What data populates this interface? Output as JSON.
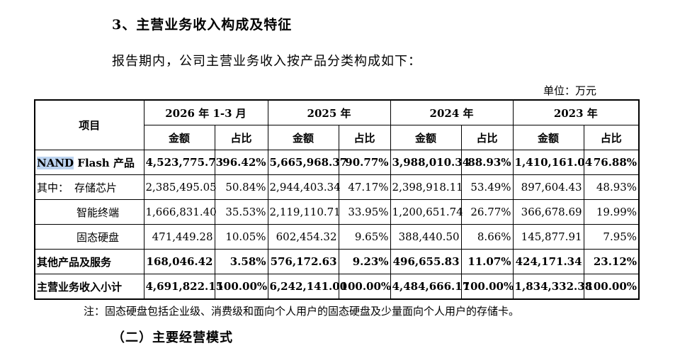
{
  "section_title": "3、主营业务收入构成及特征",
  "intro": "报告期内，公司主营业务收入按产品分类构成如下：",
  "unit": "单位：万元",
  "table": {
    "item_header": "项目",
    "periods": [
      "2026 年 1-3 月",
      "2025 年",
      "2024 年",
      "2023 年"
    ],
    "amount_label": "金额",
    "ratio_label": "占比",
    "rows": [
      {
        "label_hl": "NAND",
        "label_rest": " Flash 产品",
        "cells": [
          "4,523,775.73",
          "96.42%",
          "5,665,968.37",
          "90.77%",
          "3,988,010.34",
          "88.93%",
          "1,410,161.04",
          "76.88%"
        ]
      },
      {
        "label_prefix": "其中：",
        "label": "存储芯片",
        "cells": [
          "2,385,495.05",
          "50.84%",
          "2,944,403.34",
          "47.17%",
          "2,398,918.11",
          "53.49%",
          "897,604.43",
          "48.93%"
        ]
      },
      {
        "label": "智能终端",
        "cells": [
          "1,666,831.40",
          "35.53%",
          "2,119,110.71",
          "33.95%",
          "1,200,651.74",
          "26.77%",
          "366,678.69",
          "19.99%"
        ]
      },
      {
        "label": "固态硬盘",
        "cells": [
          "471,449.28",
          "10.05%",
          "602,454.32",
          "9.65%",
          "388,440.50",
          "8.66%",
          "145,877.91",
          "7.95%"
        ]
      },
      {
        "label": "其他产品及服务",
        "cells": [
          "168,046.42",
          "3.58%",
          "576,172.63",
          "9.23%",
          "496,655.83",
          "11.07%",
          "424,171.34",
          "23.12%"
        ]
      },
      {
        "label": "主营业务收入小计",
        "cells": [
          "4,691,822.15",
          "100.00%",
          "6,242,141.00",
          "100.00%",
          "4,484,666.17",
          "100.00%",
          "1,834,332.38",
          "100.00%"
        ]
      }
    ]
  },
  "note": "注：固态硬盘包括企业级、消费级和面向个人用户的固态硬盘及少量面向个人用户的存储卡。",
  "subsection_title": "（二）主要经营模式"
}
